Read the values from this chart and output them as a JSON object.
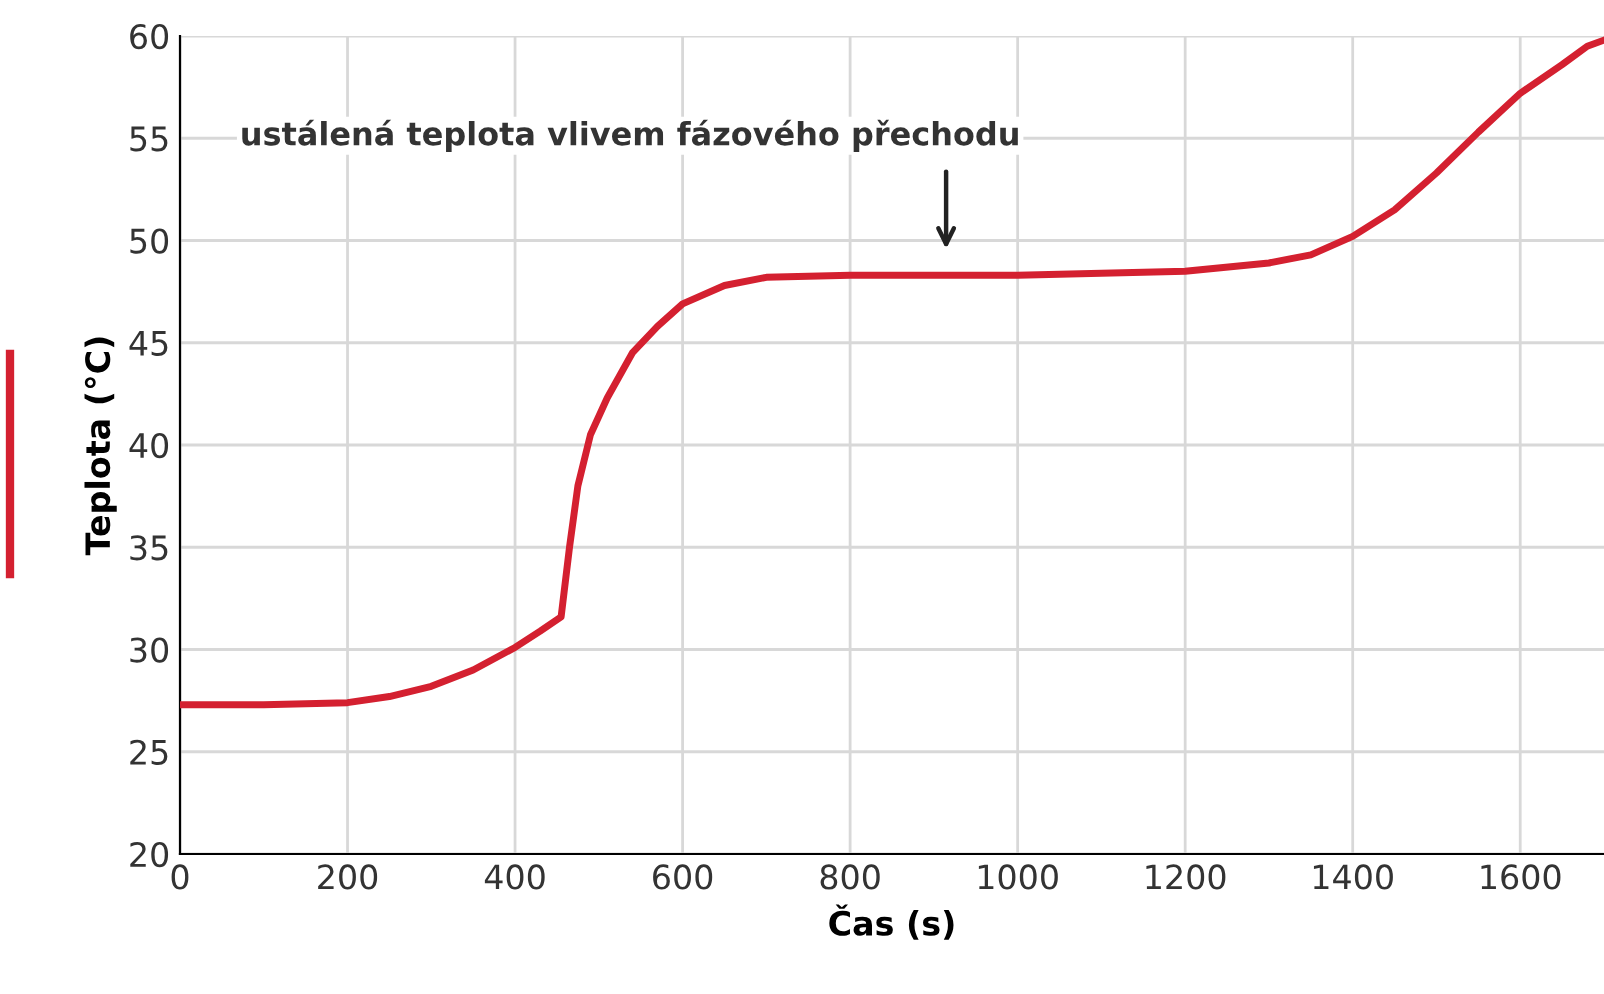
{
  "chart_data": {
    "type": "line",
    "xlabel": "Čas (s)",
    "ylabel": "Teplota (°C)",
    "x": [
      0,
      100,
      200,
      250,
      300,
      350,
      400,
      430,
      455,
      465,
      475,
      490,
      510,
      540,
      570,
      600,
      650,
      700,
      800,
      900,
      1000,
      1100,
      1200,
      1300,
      1350,
      1400,
      1450,
      1500,
      1550,
      1600,
      1650,
      1680,
      1700
    ],
    "series": [
      {
        "color": "#d42030",
        "values": [
          27.3,
          27.3,
          27.4,
          27.7,
          28.2,
          29.0,
          30.1,
          30.9,
          31.6,
          35.0,
          38.0,
          40.5,
          42.3,
          44.5,
          45.8,
          46.9,
          47.8,
          48.2,
          48.3,
          48.3,
          48.3,
          48.4,
          48.5,
          48.9,
          49.3,
          50.2,
          51.5,
          53.3,
          55.3,
          57.2,
          58.6,
          59.5,
          59.8
        ]
      }
    ],
    "xlim": [
      0,
      1700
    ],
    "ylim": [
      20,
      60
    ],
    "xticks": [
      0,
      200,
      400,
      600,
      800,
      1000,
      1200,
      1400,
      1600
    ],
    "yticks": [
      20,
      25,
      30,
      35,
      40,
      45,
      50,
      55,
      60
    ],
    "grid": true,
    "marker": "none",
    "line_style": "solid",
    "annotations": [
      "ustálená teplota vlivem fázového přechodu"
    ]
  }
}
